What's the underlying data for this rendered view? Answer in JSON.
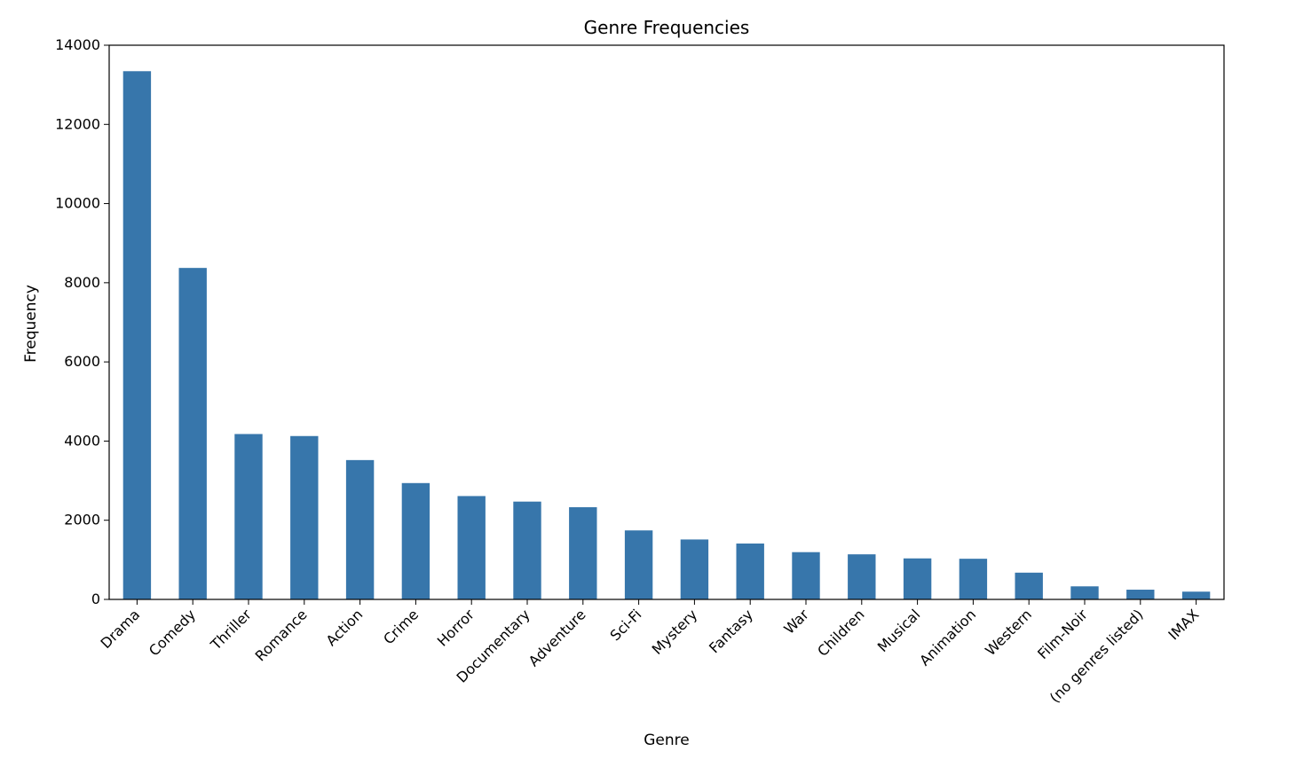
{
  "chart_data": {
    "type": "bar",
    "title": "Genre Frequencies",
    "xlabel": "Genre",
    "ylabel": "Frequency",
    "ylim": [
      0,
      14000
    ],
    "yticks": [
      0,
      2000,
      4000,
      6000,
      8000,
      10000,
      12000,
      14000
    ],
    "bar_color": "#3776ab",
    "grid": false,
    "categories": [
      "Drama",
      "Comedy",
      "Thriller",
      "Romance",
      "Action",
      "Crime",
      "Horror",
      "Documentary",
      "Adventure",
      "Sci-Fi",
      "Mystery",
      "Fantasy",
      "War",
      "Children",
      "Musical",
      "Animation",
      "Western",
      "Film-Noir",
      "(no genres listed)",
      "IMAX"
    ],
    "values": [
      13344,
      8374,
      4178,
      4127,
      3520,
      2939,
      2611,
      2471,
      2329,
      1743,
      1514,
      1412,
      1194,
      1139,
      1036,
      1027,
      676,
      330,
      246,
      196
    ]
  }
}
